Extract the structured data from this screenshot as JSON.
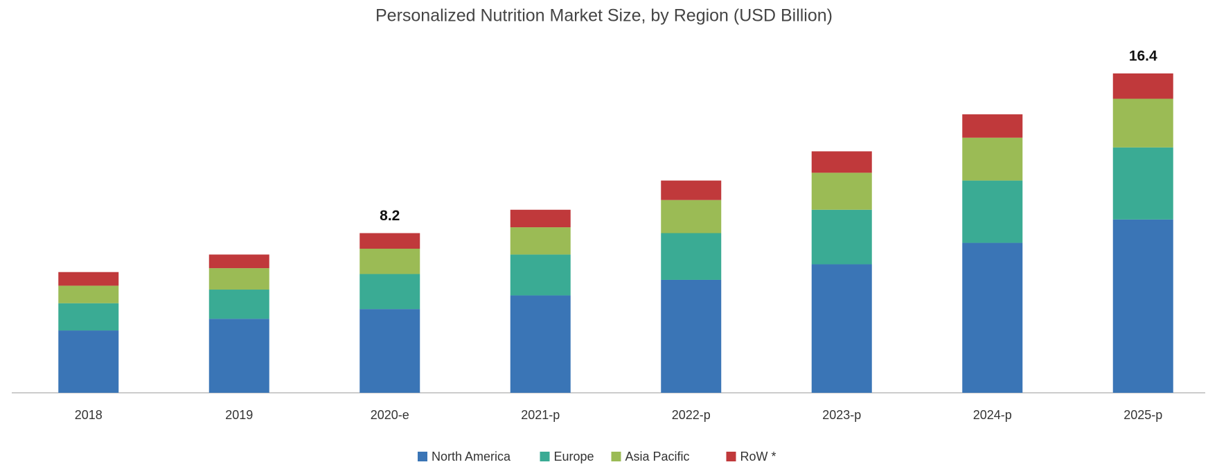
{
  "chart_data": {
    "type": "stacked_bar",
    "title": "Personalized Nutrition Market Size, by Region (USD Billion)",
    "categories": [
      "2018",
      "2019",
      "2020-e",
      "2021-p",
      "2022-p",
      "2023-p",
      "2024-p",
      "2025-p"
    ],
    "series": [
      {
        "name": "North America",
        "color": "#3a75b6",
        "values": [
          3.2,
          3.8,
          4.3,
          5.0,
          5.8,
          6.6,
          7.7,
          8.9
        ]
      },
      {
        "name": "Europe",
        "color": "#3aab94",
        "values": [
          1.4,
          1.5,
          1.8,
          2.1,
          2.4,
          2.8,
          3.2,
          3.7
        ]
      },
      {
        "name": "Asia Pacific",
        "color": "#9bbb55",
        "values": [
          0.9,
          1.1,
          1.3,
          1.4,
          1.7,
          1.9,
          2.2,
          2.5
        ]
      },
      {
        "name": "RoW *",
        "color": "#c0393b",
        "values": [
          0.7,
          0.7,
          0.8,
          0.9,
          1.0,
          1.1,
          1.2,
          1.3
        ]
      }
    ],
    "annotations": [
      {
        "category": "2020-e",
        "value": 8.2
      },
      {
        "category": "2025-p",
        "value": 16.4
      }
    ],
    "legend": "bottom"
  }
}
